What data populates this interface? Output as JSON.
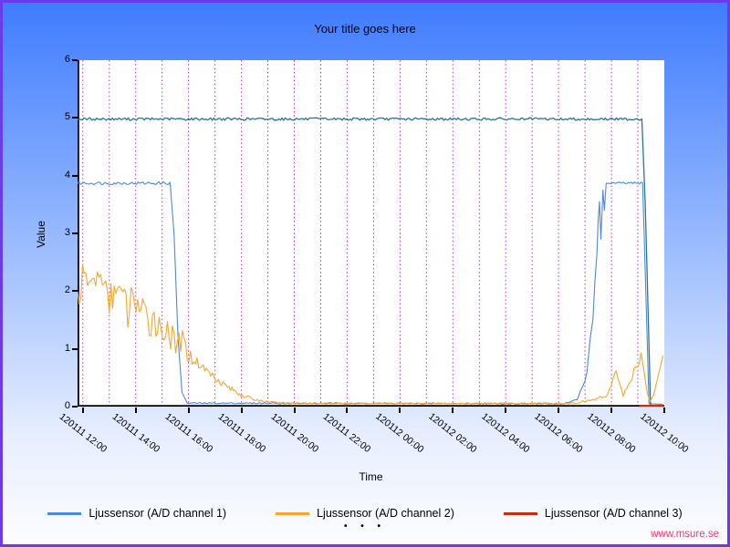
{
  "title": "Your title goes here",
  "watermark": "www.msure.se",
  "legend_more": "• • •",
  "colors": {
    "border": "#6A3AEC",
    "bg_top": "#3F7CFE",
    "bg_bottom": "#FDFDFF",
    "plot_bg": "#FFFFFF",
    "axis": "#000000",
    "gridline": "#BE2CC8",
    "watermark": "#FF3366"
  },
  "chart_data": {
    "type": "line",
    "title": "Your title goes here",
    "xlabel": "Time",
    "ylabel": "Value",
    "ylim": [
      0,
      6
    ],
    "x_range_hours": [
      11.8,
      34.0
    ],
    "grid": "vertical dotted, hourly",
    "legend_position": "bottom",
    "y_ticks": [
      0,
      1,
      2,
      3,
      4,
      5,
      6
    ],
    "x_ticks": [
      {
        "t": 12,
        "label": "120111 12:00"
      },
      {
        "t": 14,
        "label": "120111 14:00"
      },
      {
        "t": 16,
        "label": "120111 16:00"
      },
      {
        "t": 18,
        "label": "120111 18:00"
      },
      {
        "t": 20,
        "label": "120111 20:00"
      },
      {
        "t": 22,
        "label": "120111 22:00"
      },
      {
        "t": 24,
        "label": "120112 00:00"
      },
      {
        "t": 26,
        "label": "120112 02:00"
      },
      {
        "t": 28,
        "label": "120112 04:00"
      },
      {
        "t": 30,
        "label": "120112 06:00"
      },
      {
        "t": 32,
        "label": "120112 08:00"
      },
      {
        "t": 34,
        "label": "120112 10:00"
      }
    ],
    "series": [
      {
        "name": "Ljussensor (A/D channel 1)",
        "color": "#4E88D8",
        "in_legend": true,
        "z": 1,
        "width": 1.1,
        "points": [
          [
            11.8,
            3.87,
            0.025
          ],
          [
            15.3,
            3.87,
            0.02
          ],
          [
            15.45,
            3.0,
            0
          ],
          [
            15.6,
            1.2,
            0
          ],
          [
            15.75,
            0.25,
            0
          ],
          [
            15.95,
            0.06,
            0.012
          ],
          [
            30.2,
            0.05,
            0.012
          ],
          [
            30.7,
            0.12,
            0.03
          ],
          [
            31.0,
            0.45,
            0.08
          ],
          [
            31.15,
            0.9,
            0.12
          ],
          [
            31.3,
            1.7,
            0.25
          ],
          [
            31.45,
            2.4,
            0.3
          ],
          [
            31.55,
            3.55,
            0
          ],
          [
            31.6,
            2.9,
            0
          ],
          [
            31.68,
            3.75,
            0
          ],
          [
            31.73,
            3.4,
            0
          ],
          [
            31.8,
            3.87,
            0.02
          ],
          [
            33.18,
            3.87,
            0.02
          ],
          [
            33.3,
            2.0,
            0
          ],
          [
            33.42,
            0.05,
            0
          ],
          [
            33.95,
            0.04,
            0.01
          ]
        ]
      },
      {
        "name": "",
        "color": "#2A7590",
        "in_legend": false,
        "z": 2,
        "width": 1.3,
        "points": [
          [
            11.8,
            4.98,
            0.022
          ],
          [
            33.15,
            4.98,
            0.022
          ],
          [
            33.28,
            3.5,
            0
          ],
          [
            33.48,
            0.03,
            0
          ],
          [
            33.55,
            0.02,
            0
          ]
        ]
      },
      {
        "name": "Ljussensor (A/D channel 2)",
        "color": "#F7A62E",
        "in_legend": true,
        "z": 3,
        "width": 1.1,
        "points": [
          [
            11.8,
            1.9,
            0.3
          ],
          [
            12.05,
            2.25,
            0.15
          ],
          [
            12.3,
            2.1,
            0.25
          ],
          [
            12.55,
            2.3,
            0.1
          ],
          [
            12.8,
            2.15,
            0.2
          ],
          [
            13.0,
            1.75,
            0.35
          ],
          [
            13.25,
            2.1,
            0.15
          ],
          [
            13.45,
            1.95,
            0.3
          ],
          [
            13.7,
            1.65,
            0.35
          ],
          [
            13.95,
            1.9,
            0.25
          ],
          [
            14.2,
            1.65,
            0.35
          ],
          [
            14.45,
            1.4,
            0.3
          ],
          [
            14.7,
            1.6,
            0.3
          ],
          [
            14.95,
            1.25,
            0.3
          ],
          [
            15.2,
            1.45,
            0.3
          ],
          [
            15.45,
            1.0,
            0.3
          ],
          [
            15.7,
            1.15,
            0.25
          ],
          [
            15.95,
            0.9,
            0.12
          ],
          [
            16.2,
            0.82,
            0.1
          ],
          [
            16.5,
            0.7,
            0.07
          ],
          [
            16.9,
            0.55,
            0.06
          ],
          [
            17.3,
            0.4,
            0.05
          ],
          [
            17.7,
            0.28,
            0.04
          ],
          [
            18.1,
            0.18,
            0.03
          ],
          [
            18.6,
            0.11,
            0.02
          ],
          [
            19.2,
            0.07,
            0.015
          ],
          [
            20.0,
            0.055,
            0.013
          ],
          [
            30.4,
            0.055,
            0.013
          ],
          [
            31.0,
            0.09,
            0.02
          ],
          [
            31.5,
            0.14,
            0.03
          ],
          [
            31.85,
            0.2,
            0.04
          ],
          [
            32.05,
            0.45,
            0.06
          ],
          [
            32.18,
            0.62,
            0
          ],
          [
            32.3,
            0.38,
            0.04
          ],
          [
            32.45,
            0.2,
            0.03
          ],
          [
            32.65,
            0.38,
            0.06
          ],
          [
            32.85,
            0.6,
            0.07
          ],
          [
            33.0,
            0.7,
            0.06
          ],
          [
            33.12,
            0.93,
            0
          ],
          [
            33.22,
            0.65,
            0
          ],
          [
            33.35,
            0.25,
            0
          ],
          [
            33.45,
            0.08,
            0.015
          ],
          [
            33.6,
            0.2,
            0
          ],
          [
            33.75,
            0.5,
            0
          ],
          [
            33.95,
            0.88,
            0
          ]
        ]
      },
      {
        "name": "Ljussensor (A/D channel 3)",
        "color": "#C5300C",
        "in_legend": true,
        "z": 4,
        "width": 2.2,
        "points": [
          [
            33.05,
            0.015,
            0
          ],
          [
            33.98,
            0.015,
            0
          ]
        ]
      }
    ]
  }
}
